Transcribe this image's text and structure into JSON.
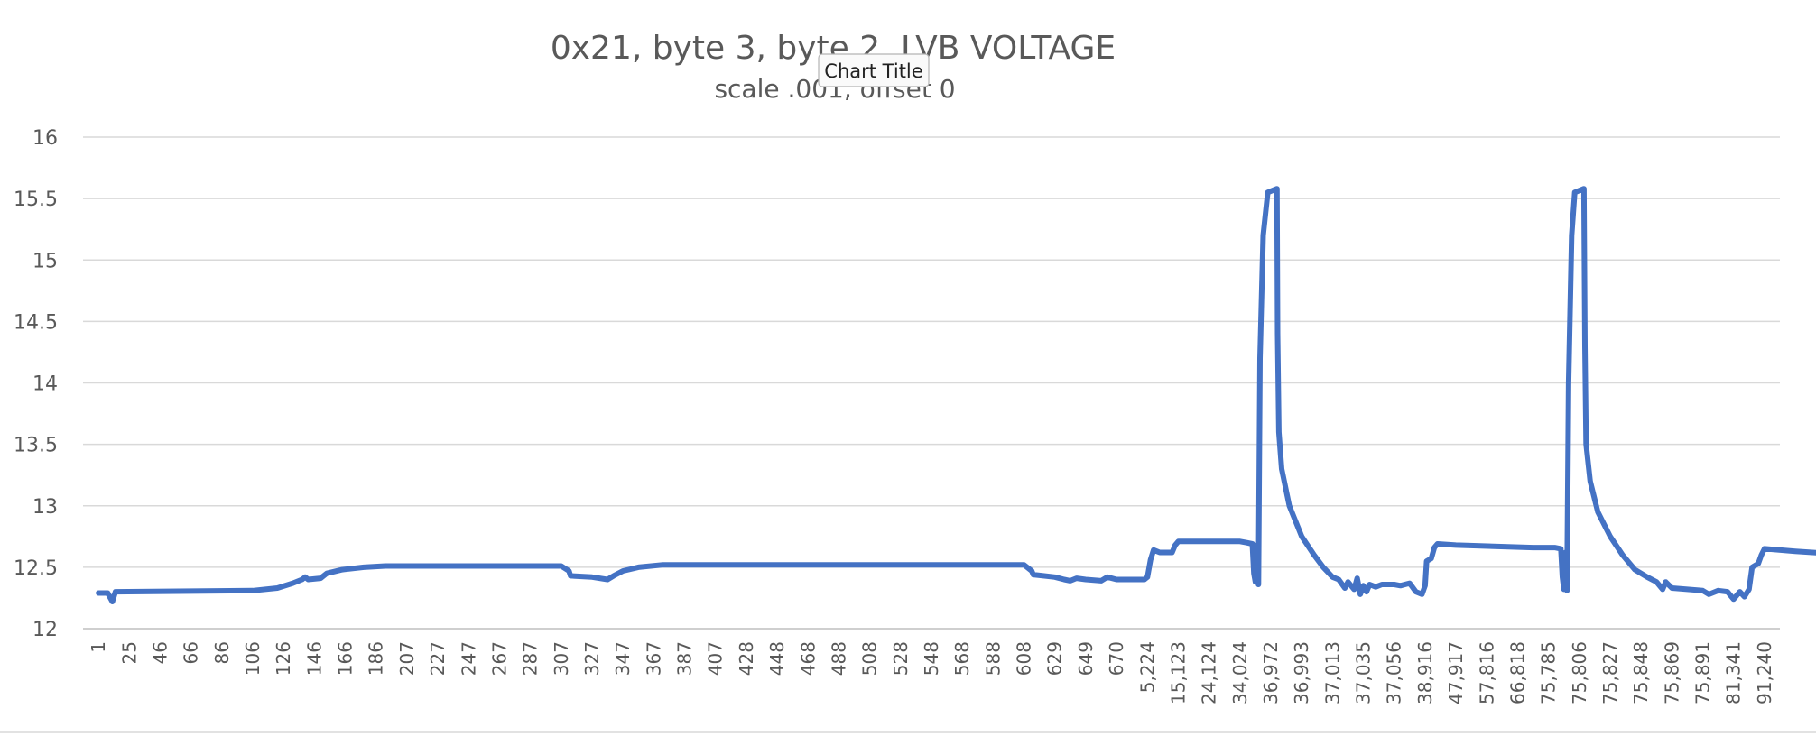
{
  "tooltip": {
    "text": "Chart Title"
  },
  "chart_data": {
    "type": "line",
    "title": "0x21, byte 3, byte 2, LVB VOLTAGE",
    "subtitle": "scale .001, offset 0",
    "ylim": [
      12,
      16
    ],
    "yticks": [
      12,
      12.5,
      13,
      13.5,
      14,
      14.5,
      15,
      15.5,
      16
    ],
    "grid": true,
    "legend": "none",
    "x_tick_labels": [
      "1",
      "25",
      "46",
      "66",
      "86",
      "106",
      "126",
      "146",
      "166",
      "186",
      "207",
      "227",
      "247",
      "267",
      "287",
      "307",
      "327",
      "347",
      "367",
      "387",
      "407",
      "428",
      "448",
      "468",
      "488",
      "508",
      "528",
      "548",
      "568",
      "588",
      "608",
      "629",
      "649",
      "670",
      "5,224",
      "15,123",
      "24,124",
      "34,024",
      "36,972",
      "36,993",
      "37,013",
      "37,035",
      "37,056",
      "38,916",
      "47,917",
      "57,816",
      "66,818",
      "75,785",
      "75,806",
      "75,827",
      "75,848",
      "75,869",
      "75,891",
      "81,341",
      "91,240"
    ],
    "series": [
      {
        "color": "#4472c4",
        "points": [
          [
            0,
            12.29
          ],
          [
            0.3,
            12.29
          ],
          [
            0.45,
            12.22
          ],
          [
            0.55,
            12.3
          ],
          [
            5,
            12.31
          ],
          [
            5.8,
            12.33
          ],
          [
            6.3,
            12.37
          ],
          [
            6.6,
            12.4
          ],
          [
            6.7,
            12.42
          ],
          [
            6.8,
            12.4
          ],
          [
            7.2,
            12.41
          ],
          [
            7.4,
            12.45
          ],
          [
            7.9,
            12.48
          ],
          [
            8.6,
            12.5
          ],
          [
            9.3,
            12.51
          ],
          [
            15,
            12.51
          ],
          [
            15.25,
            12.47
          ],
          [
            15.3,
            12.43
          ],
          [
            16,
            12.42
          ],
          [
            16.5,
            12.4
          ],
          [
            16.7,
            12.43
          ],
          [
            17,
            12.47
          ],
          [
            17.5,
            12.5
          ],
          [
            18.3,
            12.52
          ],
          [
            30,
            12.52
          ],
          [
            30.25,
            12.47
          ],
          [
            30.3,
            12.44
          ],
          [
            31,
            12.42
          ],
          [
            31.3,
            12.4
          ],
          [
            31.5,
            12.39
          ],
          [
            31.7,
            12.41
          ],
          [
            32,
            12.4
          ],
          [
            32.5,
            12.39
          ],
          [
            32.7,
            12.42
          ],
          [
            33,
            12.4
          ],
          [
            33.9,
            12.4
          ],
          [
            34,
            12.42
          ],
          [
            34.1,
            12.56
          ],
          [
            34.2,
            12.64
          ],
          [
            34.4,
            12.62
          ],
          [
            34.8,
            12.62
          ],
          [
            34.9,
            12.68
          ],
          [
            35,
            12.71
          ],
          [
            37,
            12.71
          ],
          [
            37.2,
            12.7
          ],
          [
            37.4,
            12.69
          ],
          [
            37.45,
            12.45
          ],
          [
            37.5,
            12.38
          ],
          [
            37.55,
            12.68
          ],
          [
            37.6,
            12.36
          ],
          [
            37.65,
            14.2
          ],
          [
            37.75,
            15.2
          ],
          [
            37.9,
            15.55
          ],
          [
            38.2,
            15.58
          ],
          [
            38.22,
            14.4
          ],
          [
            38.26,
            13.6
          ],
          [
            38.35,
            13.3
          ],
          [
            38.6,
            13.0
          ],
          [
            39.0,
            12.75
          ],
          [
            39.4,
            12.6
          ],
          [
            39.7,
            12.5
          ],
          [
            40.0,
            12.42
          ],
          [
            40.2,
            12.4
          ],
          [
            40.4,
            12.33
          ],
          [
            40.5,
            12.38
          ],
          [
            40.7,
            12.32
          ],
          [
            40.8,
            12.41
          ],
          [
            40.9,
            12.28
          ],
          [
            41.0,
            12.35
          ],
          [
            41.1,
            12.3
          ],
          [
            41.2,
            12.36
          ],
          [
            41.4,
            12.34
          ],
          [
            41.6,
            12.36
          ],
          [
            42,
            12.36
          ],
          [
            42.2,
            12.35
          ],
          [
            42.5,
            12.37
          ],
          [
            42.7,
            12.3
          ],
          [
            42.9,
            12.28
          ],
          [
            43.0,
            12.35
          ],
          [
            43.05,
            12.55
          ],
          [
            43.2,
            12.57
          ],
          [
            43.3,
            12.66
          ],
          [
            43.4,
            12.69
          ],
          [
            44.0,
            12.68
          ],
          [
            46.5,
            12.66
          ],
          [
            47.2,
            12.66
          ],
          [
            47.4,
            12.65
          ],
          [
            47.45,
            12.42
          ],
          [
            47.5,
            12.32
          ],
          [
            47.55,
            12.62
          ],
          [
            47.6,
            12.31
          ],
          [
            47.65,
            14.0
          ],
          [
            47.75,
            15.2
          ],
          [
            47.85,
            15.55
          ],
          [
            48.15,
            15.58
          ],
          [
            48.18,
            14.3
          ],
          [
            48.22,
            13.5
          ],
          [
            48.35,
            13.2
          ],
          [
            48.6,
            12.95
          ],
          [
            49.0,
            12.75
          ],
          [
            49.4,
            12.6
          ],
          [
            49.8,
            12.48
          ],
          [
            50.2,
            12.42
          ],
          [
            50.5,
            12.38
          ],
          [
            50.7,
            12.32
          ],
          [
            50.8,
            12.38
          ],
          [
            51.0,
            12.33
          ],
          [
            51.5,
            12.32
          ],
          [
            52,
            12.31
          ],
          [
            52.2,
            12.28
          ],
          [
            52.5,
            12.31
          ],
          [
            52.8,
            12.3
          ],
          [
            53.0,
            12.24
          ],
          [
            53.2,
            12.3
          ],
          [
            53.35,
            12.26
          ],
          [
            53.5,
            12.32
          ],
          [
            53.6,
            12.5
          ],
          [
            53.8,
            12.53
          ],
          [
            53.9,
            12.6
          ],
          [
            54.0,
            12.65
          ],
          [
            55,
            12.63
          ],
          [
            56.2,
            12.61
          ],
          [
            57.0,
            12.61
          ]
        ]
      }
    ]
  }
}
